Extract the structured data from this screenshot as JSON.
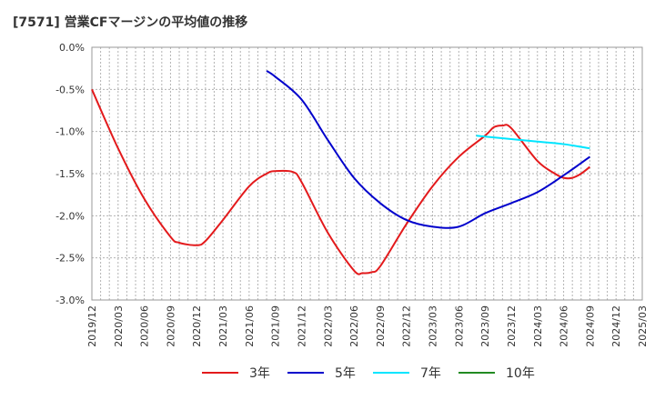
{
  "title": "[7571]  営業CFマージンの平均値の推移",
  "chart_data": {
    "type": "line",
    "x_ticks": [
      "2019/12",
      "2020/03",
      "2020/06",
      "2020/09",
      "2020/12",
      "2021/03",
      "2021/06",
      "2021/09",
      "2021/12",
      "2022/03",
      "2022/06",
      "2022/09",
      "2022/12",
      "2023/03",
      "2023/06",
      "2023/09",
      "2023/12",
      "2024/03",
      "2024/06",
      "2024/09",
      "2024/12",
      "2025/03"
    ],
    "y_ticks": [
      "0.0%",
      "-0.5%",
      "-1.0%",
      "-1.5%",
      "-2.0%",
      "-2.5%",
      "-3.0%"
    ],
    "ylim": [
      -3.0,
      0.0
    ],
    "grid": true,
    "legend_position": "bottom",
    "series": [
      {
        "name": "3年",
        "color": "#e31a1c",
        "x": [
          "2019/12",
          "2020/03",
          "2020/06",
          "2020/09",
          "2020/10",
          "2020/12",
          "2021/01",
          "2021/03",
          "2021/06",
          "2021/08",
          "2021/09",
          "2021/11",
          "2021/12",
          "2022/03",
          "2022/06",
          "2022/07",
          "2022/08",
          "2022/09",
          "2022/12",
          "2023/03",
          "2023/06",
          "2023/09",
          "2023/10",
          "2023/11",
          "2023/12",
          "2024/03",
          "2024/05",
          "2024/06",
          "2024/07",
          "2024/08",
          "2024/09"
        ],
        "values": [
          -0.5,
          -1.2,
          -1.8,
          -2.25,
          -2.32,
          -2.35,
          -2.3,
          -2.05,
          -1.65,
          -1.5,
          -1.47,
          -1.48,
          -1.6,
          -2.2,
          -2.65,
          -2.68,
          -2.67,
          -2.6,
          -2.1,
          -1.65,
          -1.3,
          -1.05,
          -0.95,
          -0.93,
          -0.96,
          -1.35,
          -1.5,
          -1.55,
          -1.55,
          -1.5,
          -1.42
        ]
      },
      {
        "name": "5年",
        "color": "#0000cc",
        "x": [
          "2021/08",
          "2021/09",
          "2021/12",
          "2022/03",
          "2022/06",
          "2022/09",
          "2022/12",
          "2023/03",
          "2023/06",
          "2023/09",
          "2023/12",
          "2024/03",
          "2024/06",
          "2024/09"
        ],
        "values": [
          -0.28,
          -0.35,
          -0.62,
          -1.1,
          -1.55,
          -1.85,
          -2.05,
          -2.13,
          -2.13,
          -1.97,
          -1.85,
          -1.72,
          -1.52,
          -1.3
        ]
      },
      {
        "name": "7年",
        "color": "#00e5ff",
        "x": [
          "2023/08",
          "2023/09",
          "2023/12",
          "2024/03",
          "2024/06",
          "2024/09"
        ],
        "values": [
          -1.05,
          -1.06,
          -1.09,
          -1.12,
          -1.15,
          -1.2
        ]
      },
      {
        "name": "10年",
        "color": "#228b22",
        "x": [],
        "values": []
      }
    ]
  }
}
